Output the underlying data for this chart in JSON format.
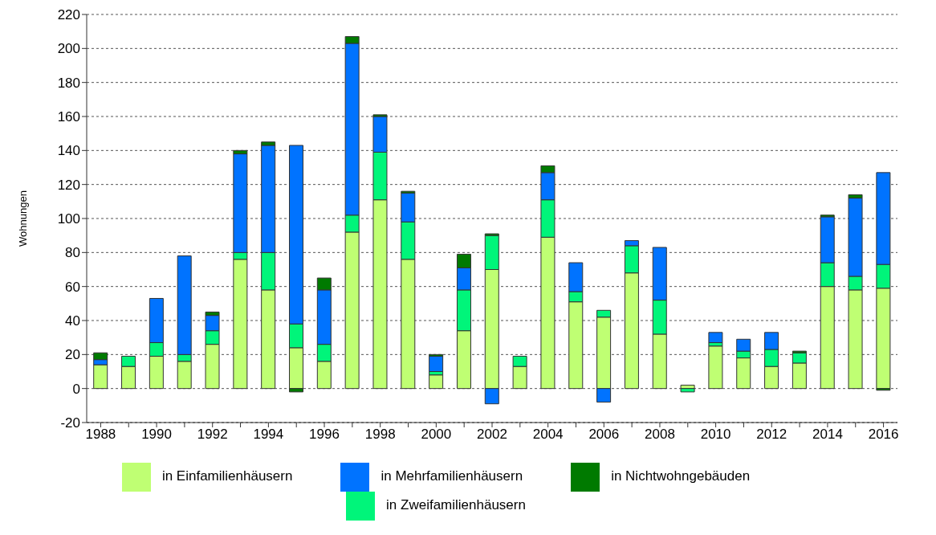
{
  "chart_data": {
    "type": "bar",
    "ylabel": "Wohnungen",
    "stacked": true,
    "grid": "y",
    "legend": "bottom",
    "categories": [
      "1988",
      null,
      "1990",
      null,
      "1992",
      null,
      "1994",
      null,
      "1996",
      null,
      "1998",
      null,
      "2000",
      null,
      "2002",
      null,
      "2004",
      null,
      "2006",
      null,
      "2008",
      null,
      "2010",
      null,
      "2012",
      null,
      "2014",
      null,
      "2016"
    ],
    "ylim": [
      -20,
      220
    ],
    "yticks": [
      -20,
      0,
      20,
      40,
      60,
      80,
      100,
      120,
      140,
      160,
      180,
      200,
      220
    ],
    "series": [
      {
        "name": "in Einfamilienhäusern",
        "color": "#bfff73",
        "values": [
          14,
          13,
          19,
          16,
          26,
          76,
          58,
          24,
          16,
          92,
          111,
          76,
          8,
          34,
          70,
          13,
          89,
          51,
          42,
          68,
          32,
          2,
          25,
          18,
          13,
          15,
          60,
          58,
          59
        ]
      },
      {
        "name": "in Zweifamilienhäusern",
        "color": "#00f57a",
        "values": [
          0,
          6,
          8,
          4,
          8,
          4,
          22,
          14,
          10,
          10,
          28,
          22,
          2,
          24,
          20,
          6,
          22,
          6,
          4,
          16,
          20,
          -2,
          2,
          4,
          10,
          6,
          14,
          8,
          14
        ]
      },
      {
        "name": "in Mehrfamilienhäusern",
        "color": "#0073ff",
        "values": [
          3,
          0,
          26,
          58,
          9,
          58,
          63,
          105,
          32,
          101,
          21,
          17,
          9,
          13,
          -9,
          0,
          16,
          17,
          -8,
          3,
          31,
          0,
          6,
          7,
          10,
          0,
          27,
          46,
          54
        ]
      },
      {
        "name": "in Nichtwohngebäuden",
        "color": "#007a00",
        "values": [
          4,
          0,
          0,
          0,
          2,
          2,
          2,
          -2,
          7,
          4,
          1,
          1,
          1,
          8,
          1,
          0,
          4,
          0,
          0,
          0,
          0,
          0,
          0,
          0,
          0,
          1,
          1,
          2,
          -1
        ]
      }
    ]
  }
}
